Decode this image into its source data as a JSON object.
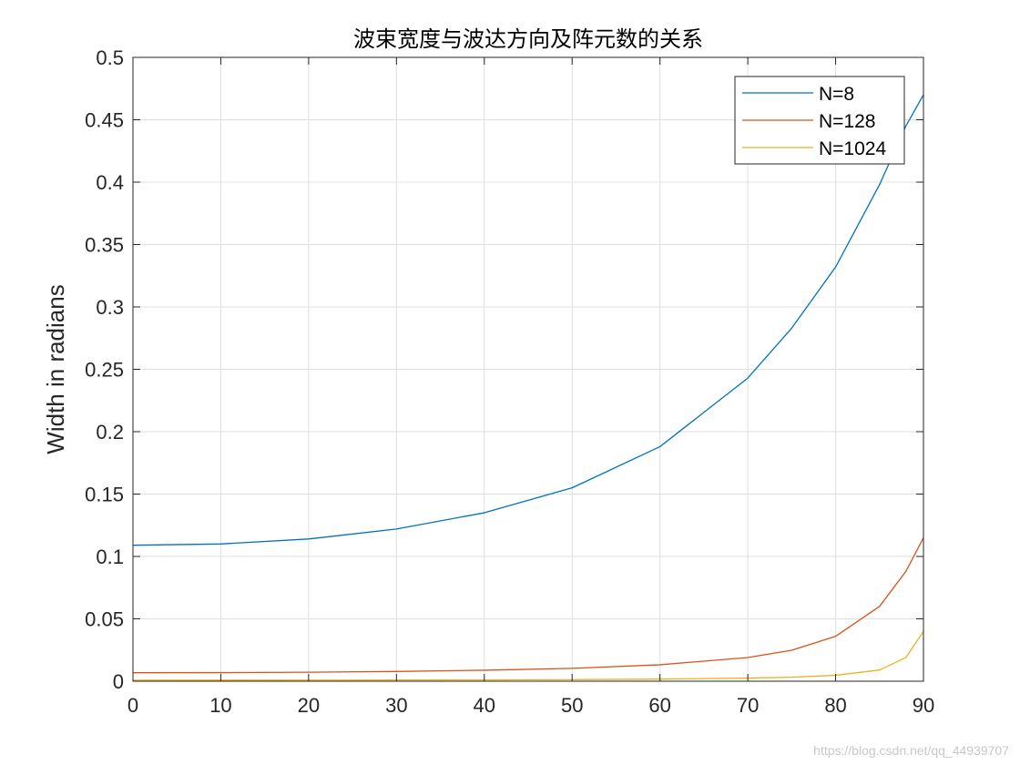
{
  "chart_data": {
    "type": "line",
    "title": "波束宽度与波达方向及阵元数的关系",
    "xlabel": "",
    "ylabel": "Width in radians",
    "xlim": [
      0,
      90
    ],
    "ylim": [
      0,
      0.5
    ],
    "xticks": [
      0,
      10,
      20,
      30,
      40,
      50,
      60,
      70,
      80,
      90
    ],
    "yticks": [
      0,
      0.05,
      0.1,
      0.15,
      0.2,
      0.25,
      0.3,
      0.35,
      0.4,
      0.45,
      0.5
    ],
    "grid": true,
    "legend_position": "top-right",
    "x": [
      0,
      10,
      20,
      30,
      40,
      50,
      60,
      70,
      75,
      80,
      85,
      88,
      90
    ],
    "series": [
      {
        "name": "N=8",
        "color": "#0072BD",
        "values": [
          0.109,
          0.11,
          0.114,
          0.122,
          0.135,
          0.155,
          0.188,
          0.243,
          0.283,
          0.332,
          0.398,
          0.445,
          0.47
        ]
      },
      {
        "name": "N=128",
        "color": "#D95319",
        "values": [
          0.0068,
          0.0069,
          0.0072,
          0.0078,
          0.0088,
          0.0103,
          0.0132,
          0.019,
          0.0248,
          0.036,
          0.06,
          0.088,
          0.115
        ]
      },
      {
        "name": "N=1024",
        "color": "#EDB120",
        "values": [
          0.00085,
          0.00086,
          0.0009,
          0.00098,
          0.0011,
          0.0013,
          0.0017,
          0.0025,
          0.0032,
          0.0048,
          0.009,
          0.019,
          0.04
        ]
      }
    ]
  },
  "watermark": "https://blog.csdn.net/qq_44939707"
}
